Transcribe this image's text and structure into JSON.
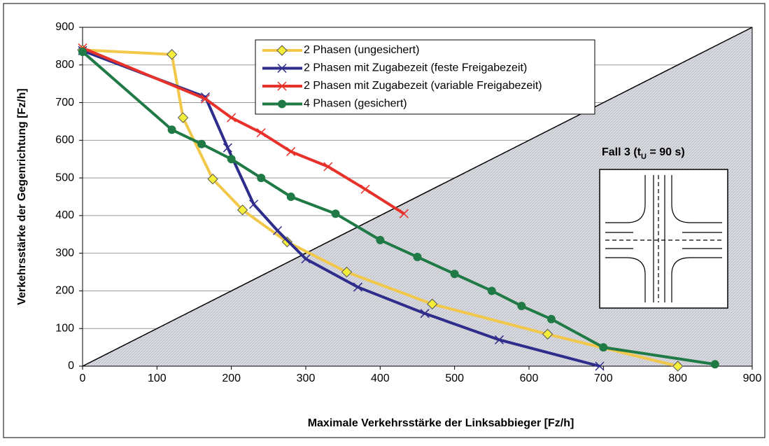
{
  "chart_data": {
    "type": "line",
    "xlabel": "Maximale Verkehrsstärke der Linksabbieger [Fz/h]",
    "ylabel": "Verkehrsstärke der Gegenrichtung [Fz/h]",
    "xlim": [
      0,
      900
    ],
    "ylim": [
      0,
      900
    ],
    "xticks": [
      0,
      100,
      200,
      300,
      400,
      500,
      600,
      700,
      800,
      900
    ],
    "yticks": [
      0,
      100,
      200,
      300,
      400,
      500,
      600,
      700,
      800,
      900
    ],
    "grid": true,
    "legend": "top",
    "annotation": [
      "Fall 3 (t",
      "U",
      " = 90 s)"
    ],
    "series": [
      {
        "name": "2 Phasen (ungesichert)",
        "color": "#f2c84b",
        "marker": "diamond",
        "x": [
          0,
          120,
          135,
          175,
          215,
          275,
          355,
          470,
          625,
          800
        ],
        "values": [
          840,
          828,
          660,
          497,
          415,
          330,
          250,
          165,
          85,
          0
        ]
      },
      {
        "name": "2 Phasen mit Zugabezeit (feste Freigabezeit)",
        "color": "#2e2d8c",
        "marker": "x",
        "x": [
          0,
          165,
          195,
          230,
          262,
          300,
          370,
          460,
          560,
          695
        ],
        "values": [
          838,
          715,
          580,
          430,
          360,
          285,
          210,
          140,
          70,
          0
        ]
      },
      {
        "name": "2 Phasen mit Zugabezeit (variable Freigabezeit)",
        "color": "#e8312a",
        "marker": "x",
        "x": [
          0,
          165,
          200,
          240,
          280,
          330,
          380,
          432
        ],
        "values": [
          845,
          710,
          660,
          620,
          570,
          530,
          470,
          405
        ]
      },
      {
        "name": "4 Phasen (gesichert)",
        "color": "#1f7a45",
        "marker": "circle",
        "x": [
          0,
          120,
          160,
          200,
          240,
          280,
          340,
          400,
          450,
          500,
          550,
          590,
          630,
          700,
          850
        ],
        "values": [
          835,
          628,
          590,
          550,
          500,
          450,
          405,
          335,
          290,
          245,
          200,
          160,
          125,
          50,
          5
        ]
      }
    ]
  }
}
